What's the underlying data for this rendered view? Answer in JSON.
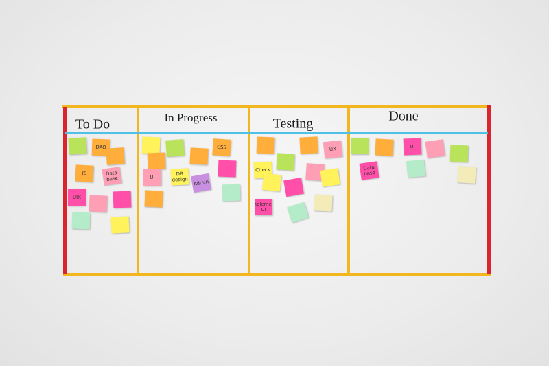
{
  "board": {
    "columns": [
      {
        "title": "To Do",
        "notes": [
          "DAO",
          "JS",
          "Data base",
          "UIX"
        ]
      },
      {
        "title": "In Progress",
        "notes": [
          "CSS",
          "UI",
          "DB design",
          "Admin"
        ]
      },
      {
        "title": "Testing",
        "notes": [
          "UX",
          "Check",
          "Implement UI"
        ]
      },
      {
        "title": "Done",
        "notes": [
          "UI",
          "Data base"
        ]
      }
    ]
  }
}
